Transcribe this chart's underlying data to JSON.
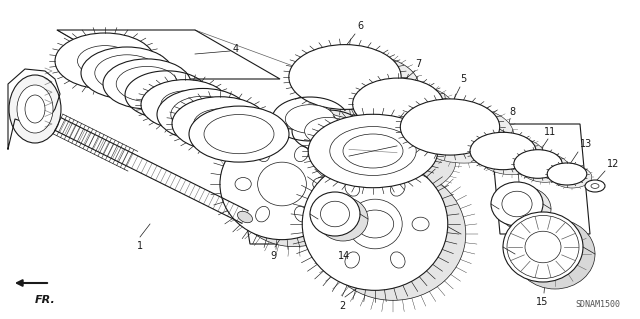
{
  "bg_color": "#ffffff",
  "line_color": "#1a1a1a",
  "fig_width": 6.4,
  "fig_height": 3.19,
  "dpi": 100,
  "watermark": "SDNAM1500",
  "direction_label": "FR."
}
